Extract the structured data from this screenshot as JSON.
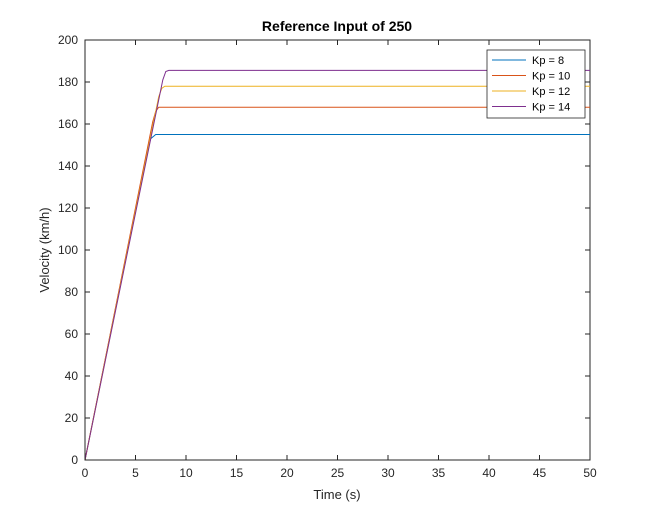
{
  "chart_data": {
    "type": "line",
    "title": "Reference Input of 250",
    "xlabel": "Time (s)",
    "ylabel": "Velocity (km/h)",
    "xlim": [
      0,
      50
    ],
    "ylim": [
      0,
      200
    ],
    "xticks": [
      "0",
      "5",
      "10",
      "15",
      "20",
      "25",
      "30",
      "35",
      "40",
      "45",
      "50"
    ],
    "yticks": [
      "0",
      "20",
      "40",
      "60",
      "80",
      "100",
      "120",
      "140",
      "160",
      "180",
      "200"
    ],
    "grid": false,
    "legend_position": "top-right",
    "series": [
      {
        "name": "Kp = 8",
        "color": "#0072bd",
        "x": [
          0,
          6.2,
          6.5,
          7.0,
          50
        ],
        "y": [
          0,
          148,
          153,
          155,
          155
        ]
      },
      {
        "name": "Kp = 10",
        "color": "#d95319",
        "x": [
          0,
          6.7,
          7.0,
          7.3,
          50
        ],
        "y": [
          0,
          161,
          166,
          168,
          168
        ]
      },
      {
        "name": "Kp = 12",
        "color": "#edb120",
        "x": [
          0,
          7.3,
          7.6,
          7.9,
          50
        ],
        "y": [
          0,
          173,
          177,
          178,
          178
        ]
      },
      {
        "name": "Kp = 14",
        "color": "#7e2f8e",
        "x": [
          0,
          7.7,
          8.0,
          8.3,
          50
        ],
        "y": [
          0,
          181,
          185,
          185.5,
          185.5
        ]
      }
    ]
  }
}
